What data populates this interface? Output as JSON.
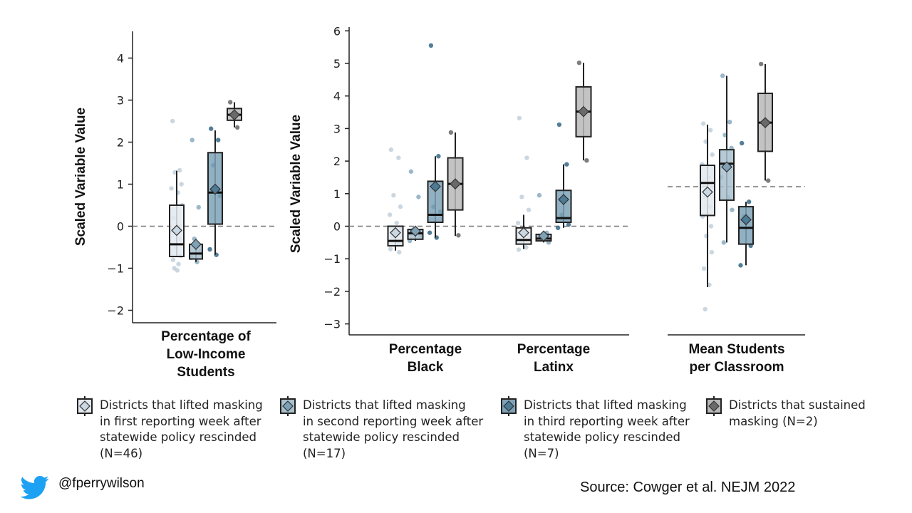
{
  "chart_data": [
    {
      "type": "box",
      "panel": "low-income",
      "ylabel": "Scaled Variable Value",
      "ylim": [
        -2.3,
        4.6
      ],
      "yticks": [
        -2,
        -1,
        0,
        1,
        2,
        3,
        4
      ],
      "reference_line": 0,
      "categories": [
        "Percentage of\nLow-Income\nStudents"
      ],
      "groups": [
        {
          "series": 0,
          "box": {
            "q1": -0.72,
            "median": -0.43,
            "q3": 0.5,
            "whisker_low": -0.72,
            "whisker_high": 1.32,
            "mean": -0.1
          },
          "points": [
            2.5,
            1.33,
            1.28,
            1.0,
            0.9,
            0.8,
            0.5,
            0.2,
            0.0,
            -0.1,
            -0.3,
            -0.5,
            -0.7,
            -0.8,
            -0.9,
            -1.0,
            -1.05
          ]
        },
        {
          "series": 1,
          "box": {
            "q1": -0.78,
            "median": -0.65,
            "q3": -0.43,
            "whisker_low": -0.85,
            "whisker_high": -0.43,
            "mean": -0.43
          },
          "points": [
            2.05,
            0.45,
            -0.3,
            -0.6,
            -0.75,
            -0.85
          ]
        },
        {
          "series": 2,
          "box": {
            "q1": 0.05,
            "median": 0.8,
            "q3": 1.75,
            "whisker_low": -0.68,
            "whisker_high": 2.28,
            "mean": 0.88
          },
          "points": [
            2.32,
            2.05,
            1.45,
            0.72,
            -0.55,
            -0.68
          ]
        },
        {
          "series": 3,
          "box": {
            "q1": 2.52,
            "median": 2.65,
            "q3": 2.8,
            "whisker_low": 2.35,
            "whisker_high": 2.95,
            "mean": 2.65
          },
          "points": [
            2.95,
            2.35
          ]
        }
      ]
    },
    {
      "type": "box",
      "panel": "race",
      "ylabel": "Scaled Variable Value",
      "ylim": [
        -3.3,
        6.0
      ],
      "yticks": [
        -3,
        -2,
        -1,
        0,
        1,
        2,
        3,
        4,
        5,
        6
      ],
      "reference_line": 0,
      "categories": [
        "Percentage\nBlack",
        "Percentage\nLatinx"
      ],
      "groups": [
        {
          "category": 0,
          "series": 0,
          "box": {
            "q1": -0.6,
            "median": -0.45,
            "q3": 0.0,
            "whisker_low": -0.75,
            "whisker_high": 0.0,
            "mean": -0.2
          },
          "points": [
            2.35,
            2.1,
            0.95,
            0.6,
            0.35,
            0.1,
            -0.1,
            -0.3,
            -0.5,
            -0.7,
            -0.8
          ]
        },
        {
          "category": 0,
          "series": 1,
          "box": {
            "q1": -0.4,
            "median": -0.22,
            "q3": -0.1,
            "whisker_low": -0.45,
            "whisker_high": -0.1,
            "mean": -0.15
          },
          "points": [
            1.68,
            0.9,
            -0.1,
            -0.3,
            -0.45
          ]
        },
        {
          "category": 0,
          "series": 2,
          "box": {
            "q1": 0.12,
            "median": 0.35,
            "q3": 1.38,
            "whisker_low": -0.35,
            "whisker_high": 2.15,
            "mean": 1.22
          },
          "points": [
            5.55,
            2.15,
            0.6,
            0.45,
            -0.2,
            -0.35
          ]
        },
        {
          "category": 0,
          "series": 3,
          "box": {
            "q1": 0.5,
            "median": 1.3,
            "q3": 2.1,
            "whisker_low": -0.3,
            "whisker_high": 2.88,
            "mean": 1.3
          },
          "points": [
            2.88,
            -0.28
          ]
        },
        {
          "category": 1,
          "series": 0,
          "box": {
            "q1": -0.55,
            "median": -0.42,
            "q3": -0.05,
            "whisker_low": -0.7,
            "whisker_high": 0.35,
            "mean": -0.2
          },
          "points": [
            3.32,
            2.1,
            0.9,
            0.5,
            0.1,
            -0.1,
            -0.3,
            -0.5,
            -0.65,
            -0.72
          ]
        },
        {
          "category": 1,
          "series": 1,
          "box": {
            "q1": -0.45,
            "median": -0.38,
            "q3": -0.25,
            "whisker_low": -0.5,
            "whisker_high": -0.25,
            "mean": -0.3
          },
          "points": [
            0.95,
            -0.2,
            -0.4,
            -0.5
          ]
        },
        {
          "category": 1,
          "series": 2,
          "box": {
            "q1": 0.12,
            "median": 0.25,
            "q3": 1.1,
            "whisker_low": -0.05,
            "whisker_high": 1.9,
            "mean": 0.82
          },
          "points": [
            3.12,
            1.9,
            0.35,
            0.05,
            -0.05
          ]
        },
        {
          "category": 1,
          "series": 3,
          "box": {
            "q1": 2.75,
            "median": 3.52,
            "q3": 4.28,
            "whisker_low": 2.02,
            "whisker_high": 5.02,
            "mean": 3.52
          },
          "points": [
            5.02,
            2.02
          ]
        }
      ]
    },
    {
      "type": "box",
      "panel": "classroom",
      "categories": [
        "Mean Students\nper Classroom"
      ],
      "reference_line_y": "≈1.2 on shared scale",
      "groups": [
        {
          "series": 0,
          "box": {
            "q1": 0.33,
            "median": 1.33,
            "q3": 1.87,
            "whisker_low": -1.87,
            "whisker_high": 3.12,
            "mean": 1.05
          },
          "points": [
            3.15,
            2.95,
            2.6,
            2.2,
            1.9,
            1.5,
            1.2,
            0.9,
            0.6,
            0.3,
            0.0,
            -0.3,
            -0.8,
            -1.3,
            -1.8,
            -2.55
          ]
        },
        {
          "series": 1,
          "box": {
            "q1": 0.8,
            "median": 1.92,
            "q3": 2.35,
            "whisker_low": -0.5,
            "whisker_high": 4.62,
            "mean": 1.82
          },
          "points": [
            4.62,
            3.2,
            2.8,
            2.4,
            1.5,
            0.9,
            0.5,
            -0.5
          ]
        },
        {
          "series": 2,
          "box": {
            "q1": -0.55,
            "median": -0.05,
            "q3": 0.6,
            "whisker_low": -1.2,
            "whisker_high": 0.75,
            "mean": 0.2
          },
          "points": [
            2.55,
            0.75,
            0.3,
            -0.6,
            -1.2
          ]
        },
        {
          "series": 3,
          "box": {
            "q1": 2.3,
            "median": 3.18,
            "q3": 4.08,
            "whisker_low": 1.4,
            "whisker_high": 4.98,
            "mean": 3.18
          },
          "points": [
            4.98,
            1.4
          ]
        }
      ]
    }
  ],
  "series_styles": [
    {
      "fill": "#e3e9ee",
      "dot": "#b9cad6",
      "diamond": "#c9d8e2"
    },
    {
      "fill": "#a9c1cf",
      "dot": "#8fb0c3",
      "diamond": "#7fa1b6"
    },
    {
      "fill": "#7ea3b8",
      "dot": "#40708c",
      "diamond": "#4d7a94"
    },
    {
      "fill": "#b8b8b8",
      "dot": "#6f6f6f",
      "diamond": "#6a6a6a"
    }
  ],
  "legend": [
    {
      "label": "Districts that lifted masking\nin first reporting week after\nstatewide policy rescinded\n(N=46)"
    },
    {
      "label": "Districts that lifted masking\nin second reporting week after\nstatewide policy rescinded\n(N=17)"
    },
    {
      "label": "Districts that lifted masking\nin third reporting week after\nstatewide policy rescinded\n(N=7)"
    },
    {
      "label": "Districts that sustained\nmasking (N=2)"
    }
  ],
  "footer": {
    "handle": "@fperrywilson",
    "source": "Source: Cowger et al. NEJM 2022",
    "icon": "twitter-bird-icon",
    "icon_color": "#1da1f2"
  }
}
